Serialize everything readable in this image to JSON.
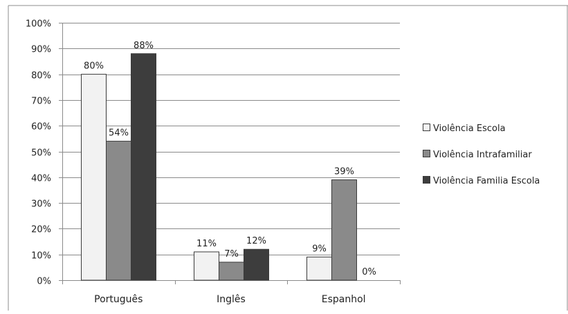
{
  "chart_data": {
    "type": "bar",
    "categories": [
      "Português",
      "Inglês",
      "Espanhol"
    ],
    "series": [
      {
        "name": "Violência Escola",
        "values": [
          80,
          11,
          9
        ],
        "color": "#f2f2f2"
      },
      {
        "name": "Violência Intrafamiliar",
        "values": [
          54,
          7,
          39
        ],
        "color": "#8a8a8a"
      },
      {
        "name": "Violência Familia Escola",
        "values": [
          88,
          12,
          0
        ],
        "color": "#3d3d3d"
      }
    ],
    "y_ticks": [
      "0%",
      "10%",
      "20%",
      "30%",
      "40%",
      "50%",
      "60%",
      "70%",
      "80%",
      "90%",
      "100%"
    ],
    "ylim": [
      0,
      100
    ],
    "value_suffix": "%",
    "grid": true,
    "legend_position": "right"
  }
}
